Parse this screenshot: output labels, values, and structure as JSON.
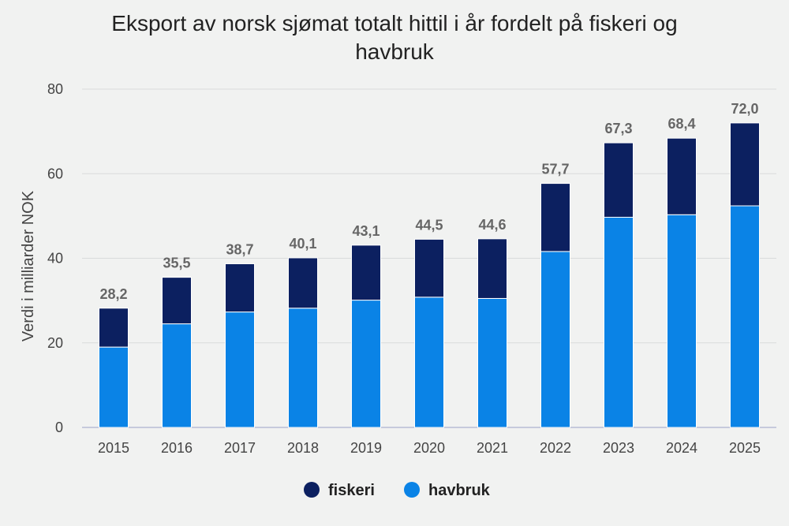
{
  "chart_data": {
    "type": "bar",
    "stacked": true,
    "title": "Eksport av norsk sjømat totalt hittil i år fordelt på fiskeri og havbruk",
    "xlabel": "",
    "ylabel": "Verdi i milliarder NOK",
    "ylim": [
      0,
      80
    ],
    "yticks": [
      0,
      20,
      40,
      60,
      80
    ],
    "grid": true,
    "legend_position": "bottom",
    "categories": [
      "2015",
      "2016",
      "2017",
      "2018",
      "2019",
      "2020",
      "2021",
      "2022",
      "2023",
      "2024",
      "2025"
    ],
    "series": [
      {
        "name": "havbruk",
        "color": "#0a83e6",
        "values": [
          19.0,
          24.5,
          27.3,
          28.2,
          30.1,
          30.8,
          30.5,
          41.6,
          49.7,
          50.3,
          52.4
        ]
      },
      {
        "name": "fiskeri",
        "color": "#0c2060",
        "values": [
          9.2,
          11.0,
          11.4,
          11.9,
          13.0,
          13.7,
          14.1,
          16.1,
          17.6,
          18.1,
          19.6
        ]
      }
    ],
    "totals": [
      "28,2",
      "35,5",
      "38,7",
      "40,1",
      "43,1",
      "44,5",
      "44,6",
      "57,7",
      "67,3",
      "68,4",
      "72,0"
    ],
    "legend": [
      {
        "name": "fiskeri",
        "color": "#0c2060"
      },
      {
        "name": "havbruk",
        "color": "#0a83e6"
      }
    ]
  }
}
